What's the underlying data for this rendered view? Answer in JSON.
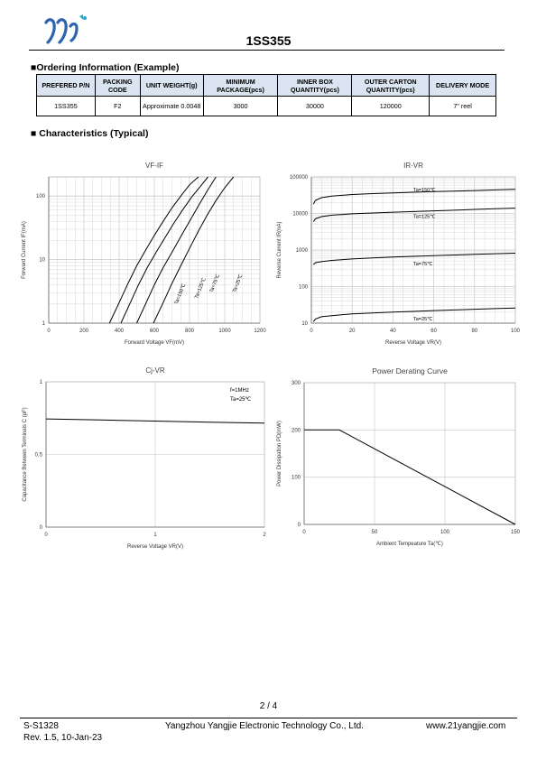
{
  "header": {
    "title": "1SS355"
  },
  "ordering": {
    "section_title": "■Ordering Information (Example)",
    "headers": [
      "PREFERED P/N",
      "PACKING CODE",
      "UNIT WEIGHT(g)",
      "MINIMUM PACKAGE(pcs)",
      "INNER BOX QUANTITY(pcs)",
      "OUTER CARTON QUANTITY(pcs)",
      "DELIVERY MODE"
    ],
    "rows": [
      [
        "1SS355",
        "F2",
        "Approximate 0.0048",
        "3000",
        "30000",
        "120000",
        "7\" reel"
      ]
    ]
  },
  "characteristics": {
    "section_title": "■ Characteristics (Typical)"
  },
  "chart_data": [
    {
      "type": "line",
      "title": "VF-IF",
      "xlabel": "Forward Voltage   VF(mV)",
      "ylabel": "Forward Current   IF(mA)",
      "xlim": [
        0,
        1200
      ],
      "ylim": [
        1,
        200
      ],
      "yscale": "log",
      "xticks": [
        "0",
        "200",
        "400",
        "600",
        "800",
        "1000",
        "1200"
      ],
      "yticks": [
        "1",
        "10",
        "100"
      ],
      "grid": true,
      "series": [
        {
          "name": "Ta=150℃",
          "x": [
            345,
            400,
            450,
            500,
            550,
            600,
            650,
            700,
            750,
            800,
            850
          ],
          "y": [
            1,
            2.1,
            4.2,
            8,
            14,
            24,
            40,
            65,
            100,
            150,
            200
          ]
        },
        {
          "name": "Ta=125℃",
          "x": [
            410,
            460,
            510,
            560,
            610,
            660,
            710,
            760,
            810,
            860,
            905
          ],
          "y": [
            1,
            2,
            4,
            7.5,
            13,
            22,
            37,
            60,
            95,
            140,
            200
          ]
        },
        {
          "name": "Ta=75℃",
          "x": [
            500,
            550,
            600,
            650,
            700,
            750,
            800,
            850,
            900,
            950
          ],
          "y": [
            1,
            2,
            4,
            7.5,
            13,
            23,
            40,
            70,
            120,
            200
          ]
        },
        {
          "name": "Ta=25℃",
          "x": [
            595,
            650,
            700,
            750,
            800,
            850,
            900,
            950,
            1000,
            1050
          ],
          "y": [
            1,
            2.1,
            4.2,
            8,
            15,
            28,
            50,
            85,
            135,
            200
          ]
        }
      ]
    },
    {
      "type": "line",
      "title": "IR-VR",
      "xlabel": "Reverse Voltage   VR(V)",
      "ylabel": "Reverse Current   IR(nA)",
      "xlim": [
        0,
        100
      ],
      "ylim": [
        10,
        100000
      ],
      "yscale": "log",
      "xticks": [
        "0",
        "20",
        "40",
        "60",
        "80",
        "100"
      ],
      "yticks": [
        "10",
        "100",
        "1000",
        "10000",
        "100000"
      ],
      "grid": true,
      "series": [
        {
          "name": "Ta=150℃",
          "x": [
            1,
            2,
            5,
            10,
            20,
            30,
            40,
            50,
            60,
            70,
            80,
            90,
            100
          ],
          "y": [
            18000,
            23000,
            27000,
            30000,
            33000,
            35000,
            36500,
            38000,
            39500,
            41000,
            42500,
            44000,
            46000
          ]
        },
        {
          "name": "Ta=125℃",
          "x": [
            1,
            2,
            5,
            10,
            20,
            30,
            40,
            50,
            60,
            70,
            80,
            90,
            100
          ],
          "y": [
            6000,
            7200,
            8200,
            9000,
            9800,
            10300,
            10800,
            11300,
            11800,
            12300,
            12900,
            13500,
            14000
          ]
        },
        {
          "name": "Ta=75℃",
          "x": [
            1,
            2,
            5,
            10,
            20,
            30,
            40,
            50,
            60,
            70,
            80,
            90,
            100
          ],
          "y": [
            400,
            450,
            480,
            520,
            570,
            610,
            640,
            670,
            700,
            730,
            760,
            790,
            820
          ]
        },
        {
          "name": "Ta=25℃",
          "x": [
            1,
            2,
            5,
            10,
            20,
            30,
            40,
            50,
            60,
            70,
            80,
            90,
            100
          ],
          "y": [
            11,
            13,
            15,
            16,
            18,
            19,
            20,
            21,
            22,
            23,
            24,
            25,
            26
          ]
        }
      ]
    },
    {
      "type": "line",
      "title": "Cj-VR",
      "xlabel": "Reverse Voltage   VR(V)",
      "ylabel": "Capacitance Between Terminals C (pF)",
      "xlim": [
        0,
        2
      ],
      "ylim": [
        0,
        1
      ],
      "xticks": [
        "0",
        "1",
        "2"
      ],
      "yticks": [
        "0",
        "0.5",
        "1"
      ],
      "annotations": [
        "f=1MHz",
        "Ta=25℃"
      ],
      "grid": true,
      "series": [
        {
          "x": [
            0,
            0.5,
            1,
            1.5,
            2
          ],
          "y": [
            0.745,
            0.737,
            0.73,
            0.722,
            0.716
          ]
        }
      ]
    },
    {
      "type": "line",
      "title": "Power Derating Curve",
      "xlabel": "Ambient Tempeature Ta(℃)",
      "ylabel": "Power Dissipation   PD(mW)",
      "xlim": [
        0,
        150
      ],
      "ylim": [
        0,
        300
      ],
      "xticks": [
        "0",
        "50",
        "100",
        "150"
      ],
      "yticks": [
        "0",
        "100",
        "200",
        "300"
      ],
      "grid": true,
      "series": [
        {
          "x": [
            0,
            25,
            150
          ],
          "y": [
            200,
            200,
            0
          ]
        }
      ]
    }
  ],
  "footer": {
    "page": "2 / 4",
    "doc_no": "S-S1328",
    "company": "Yangzhou Yangjie Electronic Technology Co., Ltd.",
    "website": "www.21yangjie.com",
    "revision": "Rev. 1.5, 10-Jan-23"
  }
}
